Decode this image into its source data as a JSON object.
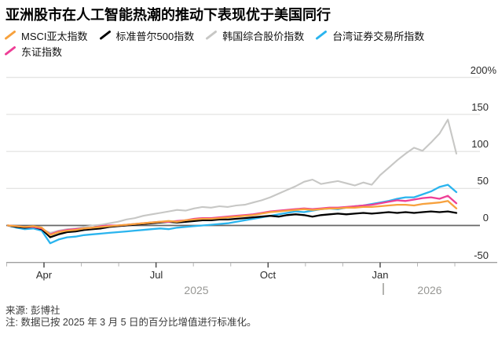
{
  "chart_data": {
    "type": "line",
    "title": "亚洲股市在人工智能热潮的推动下表现优于美国同行",
    "ylim": [
      -50,
      200
    ],
    "yticks": [
      200,
      150,
      100,
      50,
      0,
      -50
    ],
    "ytick_labels": [
      "200%",
      "150",
      "100",
      "50",
      "0",
      "-50"
    ],
    "xtick_labels": [
      "Apr",
      "Jul",
      "Oct",
      "Jan"
    ],
    "year_labels": [
      "2025",
      "2026"
    ],
    "grid": "horizontal",
    "legend_position": "top",
    "axis_colors": {
      "gridline": "#dcdcda",
      "zero_line": "#666666",
      "axis_line": "#9f9f9f",
      "major_tick": "#4c4c4c",
      "minor_tick": "#b4b4b4"
    },
    "series": [
      {
        "name": "MSCI亚太指数",
        "color": "#F7A13D",
        "values": [
          0,
          -1,
          -2,
          -1,
          -3,
          -13,
          -9,
          -7,
          -6,
          -4,
          -3,
          -2,
          -1,
          0,
          1,
          2,
          3,
          4,
          5,
          6,
          5,
          7,
          8,
          9,
          9,
          10,
          11,
          12,
          13,
          14,
          16,
          18,
          19,
          20,
          21,
          22,
          21,
          22,
          23,
          23,
          24,
          24,
          25,
          25,
          26,
          27,
          28,
          28,
          27,
          29,
          30,
          31,
          33,
          23
        ]
      },
      {
        "name": "标准普尔500指数",
        "color": "#000000",
        "values": [
          0,
          -2,
          -3,
          -2,
          -5,
          -16,
          -12,
          -9,
          -8,
          -6,
          -5,
          -4,
          -2,
          -1,
          0,
          1,
          2,
          3,
          4,
          5,
          4,
          5,
          6,
          7,
          7,
          8,
          8,
          9,
          10,
          11,
          12,
          13,
          12,
          14,
          15,
          14,
          12,
          14,
          15,
          16,
          15,
          16,
          17,
          16,
          17,
          18,
          17,
          18,
          17,
          18,
          19,
          18,
          19,
          17
        ]
      },
      {
        "name": "韩国综合股价指数",
        "color": "#C7C7C5",
        "values": [
          0,
          -2,
          -3,
          -2,
          -5,
          -10,
          -7,
          -5,
          -4,
          -2,
          0,
          1,
          3,
          5,
          8,
          10,
          13,
          15,
          17,
          19,
          21,
          20,
          23,
          25,
          24,
          26,
          25,
          27,
          28,
          31,
          34,
          38,
          43,
          48,
          53,
          59,
          62,
          56,
          58,
          60,
          57,
          54,
          58,
          55,
          68,
          78,
          88,
          97,
          105,
          101,
          112,
          124,
          143,
          97
        ]
      },
      {
        "name": "台湾证券交易所指数",
        "color": "#2AB4EE",
        "values": [
          0,
          -3,
          -5,
          -4,
          -7,
          -24,
          -19,
          -16,
          -15,
          -13,
          -12,
          -11,
          -10,
          -9,
          -8,
          -7,
          -6,
          -5,
          -4,
          -5,
          -3,
          -2,
          -1,
          0,
          1,
          2,
          3,
          5,
          7,
          9,
          11,
          13,
          15,
          17,
          19,
          18,
          20,
          22,
          23,
          22,
          24,
          26,
          27,
          29,
          31,
          33,
          36,
          38,
          38,
          42,
          46,
          52,
          55,
          45
        ]
      },
      {
        "name": "东证指数",
        "color": "#EE3E96",
        "values": [
          0,
          -1,
          -2,
          -2,
          -4,
          -12,
          -8,
          -6,
          -5,
          -4,
          -3,
          -1,
          0,
          0,
          1,
          2,
          3,
          4,
          5,
          5,
          6,
          7,
          9,
          10,
          10,
          11,
          12,
          13,
          14,
          15,
          17,
          19,
          20,
          21,
          22,
          23,
          22,
          23,
          24,
          24,
          25,
          26,
          27,
          28,
          30,
          32,
          34,
          33,
          35,
          37,
          38,
          36,
          40,
          30
        ]
      }
    ]
  },
  "footer": {
    "source": "来源: 彭博社",
    "note": "注: 数据已按 2025 年 3 月 5 日的百分比增值进行标准化。"
  }
}
